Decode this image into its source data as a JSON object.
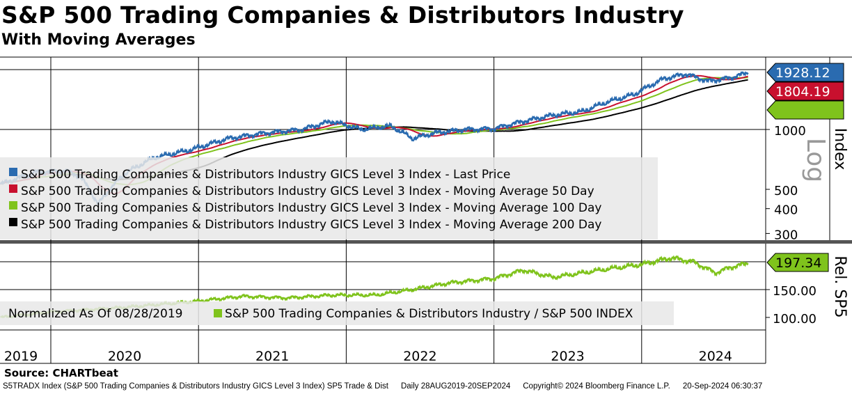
{
  "title": "S&P 500 Trading Companies & Distributors Industry",
  "subtitle": "With Moving Averages",
  "source": "Source: CHARTbeat",
  "footer": {
    "ticker": "S5TRADX Index (S&P 500 Trading Companies & Distributors Industry GICS Level 3 Index) SP5 Trade & Dist",
    "period": "Daily 28AUG2019-20SEP2024",
    "copyright": "Copyright© 2024 Bloomberg Finance L.P.",
    "timestamp": "20-Sep-2024 06:30:37"
  },
  "chart_data": [
    {
      "type": "line",
      "panel": "price",
      "scale": "log",
      "ylabel": "Index",
      "scale_label": "Log",
      "yticks": [
        "1000",
        "500",
        "400",
        "300"
      ],
      "ytick_values": [
        1000,
        500,
        400,
        300
      ],
      "ylim": [
        280,
        2000
      ],
      "last_value_label": "1928.12",
      "hidden_label": "1804.19",
      "colors": {
        "last": "#2a6bb0",
        "ma50": "#c8102e",
        "ma100": "#7fc31c",
        "ma200": "#000000"
      },
      "legend": [
        "S&P 500 Trading Companies & Distributors Industry GICS Level 3 Index - Last Price",
        "S&P 500 Trading Companies & Distributors Industry GICS Level 3 Index - Moving Average 50 Day",
        "S&P 500 Trading Companies & Distributors Industry GICS Level 3 Index - Moving Average 100 Day",
        "S&P 500 Trading Companies & Distributors Industry GICS Level 3 Index - Moving Average 200 Day"
      ],
      "x": [
        2019.66,
        2019.9,
        2020.1,
        2020.2,
        2020.32,
        2020.5,
        2020.7,
        2020.95,
        2021.2,
        2021.45,
        2021.7,
        2021.9,
        2022.1,
        2022.3,
        2022.45,
        2022.6,
        2022.8,
        2023.0,
        2023.2,
        2023.4,
        2023.6,
        2023.75,
        2023.95,
        2024.15,
        2024.3,
        2024.45,
        2024.6,
        2024.72
      ],
      "values": [
        530,
        610,
        620,
        580,
        420,
        600,
        720,
        790,
        900,
        960,
        1000,
        1100,
        1000,
        1040,
        900,
        960,
        1000,
        1010,
        1100,
        1180,
        1230,
        1360,
        1500,
        1800,
        1900,
        1750,
        1820,
        1928
      ]
    },
    {
      "type": "line",
      "panel": "relative",
      "ylabel": "Rel. SP5",
      "yticks": [
        "150.00",
        "100.00"
      ],
      "ytick_values": [
        150,
        100
      ],
      "last_value_label": "197.34",
      "color": "#7fc31c",
      "legend_prefix": "Normalized As Of 08/28/2019",
      "legend": "S&P 500 Trading Companies & Distributors Industry / S&P 500 INDEX",
      "x": [
        2019.66,
        2020.0,
        2020.5,
        2020.95,
        2021.3,
        2021.6,
        2021.9,
        2022.2,
        2022.45,
        2022.7,
        2023.0,
        2023.2,
        2023.4,
        2023.6,
        2023.8,
        2024.0,
        2024.2,
        2024.35,
        2024.5,
        2024.6,
        2024.72
      ],
      "values": [
        100,
        110,
        118,
        128,
        138,
        135,
        140,
        140,
        150,
        162,
        170,
        185,
        172,
        180,
        188,
        195,
        207,
        200,
        180,
        190,
        197.34
      ]
    },
    {
      "xticks": [
        "2019",
        "2020",
        "2021",
        "2022",
        "2023",
        "2024"
      ]
    }
  ]
}
